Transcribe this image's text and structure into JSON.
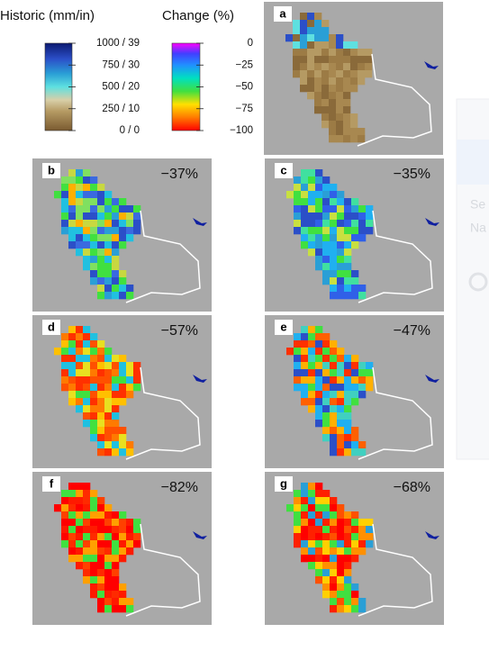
{
  "legend": {
    "historic": {
      "title": "Historic (mm/in)",
      "ticks": [
        "1000 / 39",
        "750 / 30",
        "500 / 20",
        "250 / 10",
        "0 / 0"
      ]
    },
    "change": {
      "title": "Change (%)",
      "ticks": [
        "0",
        "−25",
        "−50",
        "−75",
        "−100"
      ]
    }
  },
  "panels": [
    {
      "label": "a"
    },
    {
      "label": "b",
      "change": "−37%"
    },
    {
      "label": "c",
      "change": "−35%"
    },
    {
      "label": "d",
      "change": "−57%"
    },
    {
      "label": "e",
      "change": "−47%"
    },
    {
      "label": "f",
      "change": "−82%"
    },
    {
      "label": "g",
      "change": "−68%"
    }
  ],
  "overlay": {
    "lines": [
      "Se",
      "Na"
    ]
  }
}
